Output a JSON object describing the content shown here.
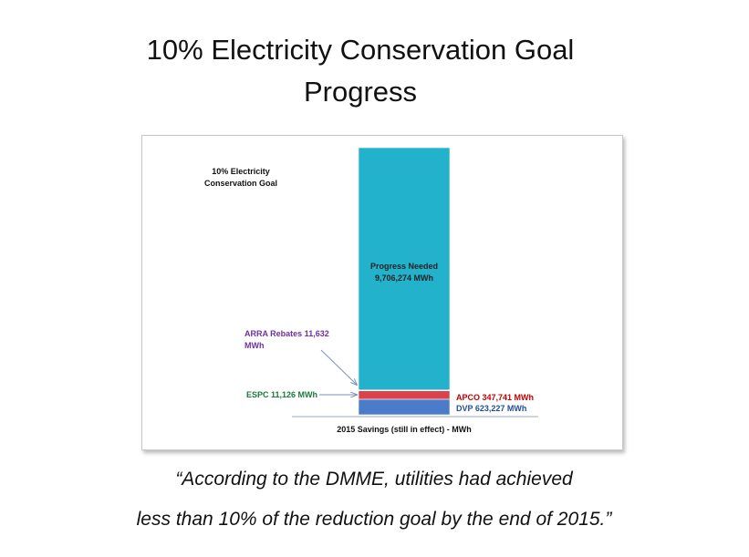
{
  "title": "10% Electricity Conservation Goal Progress",
  "quote_lines": [
    "“According to the DMME, utilities had achieved",
    "less than 10% of the reduction goal by the end of 2015.”"
  ],
  "chart_data": {
    "type": "bar",
    "stacked": true,
    "goal_label": "10% Electricity Conservation Goal",
    "categories": [
      "2015 Savings (still in effect) - MWh"
    ],
    "series": [
      {
        "label": "DVP 623,227 MWh",
        "color": "#4a7cc9",
        "label_color": "#1f4e9a",
        "values": [
          623227
        ]
      },
      {
        "label": "APCO  347,741 MWh",
        "color": "#d9434b",
        "label_color": "#c00000",
        "values": [
          347741
        ]
      },
      {
        "label": "ESPC 11,126 MWh",
        "color": "#2e8b57",
        "label_color": "#1a7a3a",
        "values": [
          11126
        ]
      },
      {
        "label": "ARRA Rebates  11,632 MWh",
        "color": "#8a2a9a",
        "label_color": "#7030a0",
        "values": [
          11632
        ]
      },
      {
        "label": "Progress Needed 9,706,274  MWh",
        "color": "#22b2cc",
        "label_color": "#222222",
        "values": [
          9706274
        ]
      }
    ]
  }
}
